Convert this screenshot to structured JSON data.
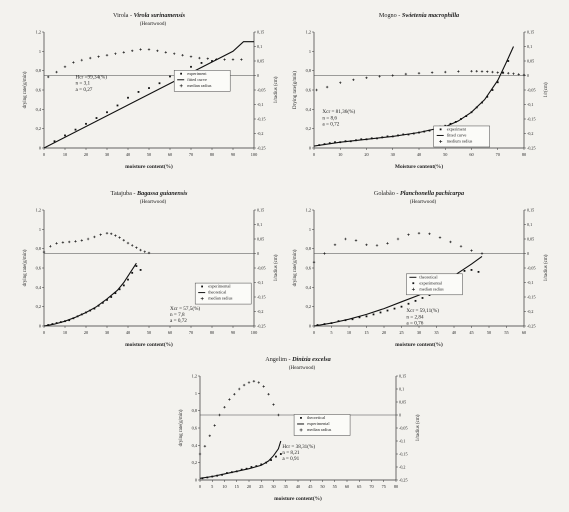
{
  "chart_data": [
    {
      "type": "line",
      "title_prefix": "Virola - ",
      "title_species": "Virola surinamensis",
      "subtitle": "(Heartwood)",
      "xlabel": "moisture content(%)",
      "ylabel": "drying rate(g/min)",
      "y2label": "1/radius (cm)",
      "xlim": [
        0,
        100
      ],
      "ylim": [
        0,
        1.2
      ],
      "y2lim": [
        -0.25,
        0.15
      ],
      "xticks": [
        "0",
        "10",
        "20",
        "30",
        "40",
        "50",
        "60",
        "70",
        "80",
        "90",
        "100"
      ],
      "yticks": [
        "0",
        "0,2",
        "0,4",
        "0,6",
        "0,8",
        "1",
        "1,2"
      ],
      "y2ticks": [
        "-0,25",
        "-0,2",
        "-0,15",
        "-0,1",
        "-0,05",
        "0",
        "0,05",
        "0,1",
        "0,15"
      ],
      "params": [
        "Hcr =99,34(%)",
        "n = 3,1",
        "a = 0,27"
      ],
      "params_pos": [
        15,
        40
      ],
      "legend": {
        "items": [
          "experiment",
          "fitted curve",
          "median radius"
        ],
        "pos": [
          62,
          33
        ]
      },
      "series": [
        {
          "name": "fitted curve",
          "kind": "line",
          "x": [
            0,
            90,
            95,
            100
          ],
          "y": [
            0,
            1.0,
            1.1,
            1.1
          ]
        },
        {
          "name": "experiment",
          "kind": "dots",
          "x": [
            5,
            10,
            15,
            20,
            25,
            30,
            35,
            40,
            45,
            50,
            55,
            60,
            65,
            70,
            75,
            80
          ],
          "y": [
            0.07,
            0.13,
            0.19,
            0.25,
            0.31,
            0.37,
            0.44,
            0.52,
            0.58,
            0.62,
            0.67,
            0.74,
            0.79,
            0.84,
            0.88,
            0.9
          ]
        },
        {
          "name": "median radius",
          "kind": "cross",
          "axis": "y2",
          "x": [
            2,
            6,
            10,
            14,
            18,
            22,
            26,
            30,
            34,
            38,
            42,
            46,
            50,
            54,
            58,
            62,
            66,
            70,
            74,
            78,
            82,
            86,
            90,
            94
          ],
          "y": [
            -0.005,
            0.012,
            0.03,
            0.045,
            0.053,
            0.06,
            0.065,
            0.07,
            0.075,
            0.08,
            0.085,
            0.09,
            0.09,
            0.085,
            0.08,
            0.075,
            0.07,
            0.065,
            0.06,
            0.058,
            0.056,
            0.055,
            0.055,
            0.055
          ]
        }
      ]
    },
    {
      "type": "line",
      "title_prefix": "Mogno - ",
      "title_species": "Swietenia macrophilla",
      "subtitle": "",
      "xlabel": "Moisture content(%)",
      "ylabel": "Drying rate(g/min)",
      "y2label": "1/r(cm)",
      "xlim": [
        0,
        80
      ],
      "ylim": [
        0,
        1.2
      ],
      "y2lim": [
        -0.25,
        0.15
      ],
      "xticks": [
        "0",
        "10",
        "20",
        "30",
        "40",
        "50",
        "60",
        "70",
        "80"
      ],
      "yticks": [
        "0",
        "0,2",
        "0,4",
        "0,6",
        "0,8",
        "1",
        "1,2"
      ],
      "y2ticks": [
        "-0,25",
        "-0,2",
        "-0,15",
        "-0,1",
        "-0,05",
        "0",
        "0,05",
        "0,1",
        "0,15"
      ],
      "params": [
        "Xcr = 81,36(%)",
        "n = 8,6",
        "a = 0,72"
      ],
      "params_pos": [
        4,
        70
      ],
      "legend": {
        "items": [
          "experiment",
          "fitted curve",
          "medium radius"
        ],
        "pos": [
          57,
          81
        ]
      },
      "series": [
        {
          "name": "fitted curve",
          "kind": "line",
          "x": [
            0,
            10,
            20,
            30,
            40,
            50,
            55,
            60,
            65,
            70,
            73,
            76
          ],
          "y": [
            0.02,
            0.06,
            0.09,
            0.12,
            0.16,
            0.22,
            0.28,
            0.37,
            0.5,
            0.7,
            0.87,
            1.05
          ]
        },
        {
          "name": "experiment",
          "kind": "dots",
          "x": [
            2,
            4,
            6,
            8,
            10,
            12,
            14,
            16,
            18,
            20,
            22,
            24,
            26,
            28,
            30,
            32,
            34,
            36,
            38,
            40,
            42,
            44,
            46,
            48,
            50,
            52,
            54,
            56,
            58,
            60,
            62,
            64,
            66,
            68,
            70,
            72,
            74
          ],
          "y": [
            0.03,
            0.04,
            0.05,
            0.06,
            0.06,
            0.07,
            0.07,
            0.08,
            0.09,
            0.09,
            0.1,
            0.1,
            0.11,
            0.12,
            0.12,
            0.13,
            0.14,
            0.14,
            0.15,
            0.16,
            0.17,
            0.18,
            0.2,
            0.22,
            0.23,
            0.25,
            0.27,
            0.3,
            0.33,
            0.37,
            0.42,
            0.47,
            0.53,
            0.6,
            0.68,
            0.78,
            0.9
          ]
        },
        {
          "name": "medium radius",
          "kind": "cross",
          "axis": "y2",
          "x": [
            1,
            5,
            10,
            15,
            20,
            25,
            30,
            35,
            40,
            45,
            50,
            55,
            60,
            62,
            64,
            66,
            68,
            70,
            72,
            74,
            76,
            78,
            80
          ],
          "y": [
            -0.05,
            -0.04,
            -0.025,
            -0.015,
            -0.008,
            -0.003,
            0.0,
            0.005,
            0.008,
            0.01,
            0.012,
            0.014,
            0.015,
            0.015,
            0.014,
            0.013,
            0.012,
            0.01,
            0.009,
            0.008,
            0.006,
            0.004,
            0.002
          ]
        }
      ]
    },
    {
      "type": "line",
      "title_prefix": "Tatajuba - ",
      "title_species": "Bagassa guianensis",
      "subtitle": "(Heartwood)",
      "xlabel": "moisture content(%)",
      "ylabel": "drying rate(g/min)",
      "y2label": "1/radius (cm)",
      "xlim": [
        0,
        100
      ],
      "ylim": [
        0,
        1.2
      ],
      "y2lim": [
        -0.25,
        0.15
      ],
      "xticks": [
        "0",
        "10",
        "20",
        "30",
        "40",
        "50",
        "60",
        "70",
        "80",
        "90",
        "100"
      ],
      "yticks": [
        "0",
        "0,2",
        "0,4",
        "0,6",
        "0,8",
        "1",
        "1,2"
      ],
      "y2ticks": [
        "-0,25",
        "-0,2",
        "-0,15",
        "-0,1",
        "-0,05",
        "0",
        "0,05",
        "0,1",
        "0,15"
      ],
      "params": [
        "Xcr = 57,5(%)",
        "n = 7,8",
        "a = 0,72"
      ],
      "params_pos": [
        60,
        86
      ],
      "legend": {
        "items": [
          "experimental",
          "theoretical",
          "median radius"
        ],
        "pos": [
          72,
          63
        ]
      },
      "series": [
        {
          "name": "theoretical",
          "kind": "line",
          "x": [
            0,
            5,
            10,
            15,
            20,
            25,
            30,
            35,
            38,
            41,
            44
          ],
          "y": [
            0.0,
            0.02,
            0.05,
            0.09,
            0.14,
            0.2,
            0.28,
            0.37,
            0.45,
            0.55,
            0.65
          ]
        },
        {
          "name": "experimental",
          "kind": "dots",
          "x": [
            2,
            4,
            6,
            8,
            10,
            12,
            14,
            16,
            18,
            20,
            22,
            24,
            26,
            28,
            30,
            32,
            34,
            36,
            38,
            40,
            42,
            44,
            46
          ],
          "y": [
            0.01,
            0.02,
            0.03,
            0.04,
            0.05,
            0.06,
            0.08,
            0.1,
            0.12,
            0.14,
            0.16,
            0.18,
            0.21,
            0.24,
            0.27,
            0.3,
            0.34,
            0.38,
            0.42,
            0.48,
            0.55,
            0.62,
            0.58
          ]
        },
        {
          "name": "median radius",
          "kind": "cross",
          "axis": "y2",
          "x": [
            0,
            3,
            6,
            9,
            12,
            15,
            18,
            21,
            24,
            27,
            30,
            32,
            34,
            36,
            38,
            40,
            42,
            44,
            46,
            48,
            50
          ],
          "y": [
            0.005,
            0.025,
            0.035,
            0.038,
            0.04,
            0.042,
            0.045,
            0.05,
            0.057,
            0.065,
            0.07,
            0.068,
            0.062,
            0.055,
            0.046,
            0.036,
            0.028,
            0.02,
            0.012,
            0.006,
            0.002
          ]
        }
      ]
    },
    {
      "type": "line",
      "title_prefix": "Golabão - ",
      "title_species": "Planchonella pachicarpa",
      "subtitle": "(Heartwood)",
      "xlabel": "moisture content(%)",
      "ylabel": "drying rate(g/min)",
      "y2label": "1/radius (cm)",
      "xlim": [
        0,
        60
      ],
      "ylim": [
        0,
        1.2
      ],
      "y2lim": [
        -0.25,
        0.15
      ],
      "xticks": [
        "0",
        "5",
        "10",
        "15",
        "20",
        "25",
        "30",
        "35",
        "40",
        "45",
        "50",
        "55",
        "60"
      ],
      "yticks": [
        "0",
        "0,2",
        "0,4",
        "0,6",
        "0,8",
        "1",
        "1,2"
      ],
      "y2ticks": [
        "-0,25",
        "-0,2",
        "-0,15",
        "-0,1",
        "-0,05",
        "0",
        "0,05",
        "0,1",
        "0,15"
      ],
      "params": [
        "Xcr = 59,11(%)",
        "n = 2,84",
        "a = 0,76"
      ],
      "params_pos": [
        44,
        88
      ],
      "legend": {
        "items": [
          "theoretical",
          "experimental",
          "median radius"
        ],
        "pos": [
          44,
          55
        ]
      },
      "series": [
        {
          "name": "theoretical",
          "kind": "line",
          "x": [
            0,
            5,
            10,
            15,
            20,
            25,
            30,
            35,
            40,
            45,
            48
          ],
          "y": [
            0.0,
            0.03,
            0.07,
            0.12,
            0.18,
            0.25,
            0.32,
            0.41,
            0.52,
            0.64,
            0.72
          ]
        },
        {
          "name": "experimental",
          "kind": "dots",
          "x": [
            1,
            3,
            5,
            7,
            9,
            11,
            13,
            15,
            17,
            19,
            21,
            23,
            25,
            27,
            29,
            31,
            33,
            35,
            37,
            39,
            41,
            43,
            45,
            47
          ],
          "y": [
            0.01,
            0.02,
            0.03,
            0.05,
            0.06,
            0.07,
            0.09,
            0.1,
            0.12,
            0.14,
            0.16,
            0.18,
            0.2,
            0.23,
            0.26,
            0.29,
            0.32,
            0.36,
            0.41,
            0.46,
            0.52,
            0.57,
            0.58,
            0.56
          ]
        },
        {
          "name": "median radius",
          "kind": "cross",
          "axis": "y2",
          "x": [
            0,
            3,
            6,
            9,
            12,
            15,
            18,
            21,
            24,
            27,
            30,
            33,
            36,
            39,
            42,
            45,
            48
          ],
          "y": [
            -0.03,
            0.0,
            0.03,
            0.05,
            0.045,
            0.03,
            0.028,
            0.035,
            0.05,
            0.065,
            0.07,
            0.068,
            0.055,
            0.04,
            0.025,
            0.01,
            0.0
          ]
        }
      ]
    },
    {
      "type": "line",
      "title_prefix": "Angelim - ",
      "title_species": "Dinizia excelsa",
      "subtitle": "(Heartwood)",
      "xlabel": "moisture content(%)",
      "ylabel": "drying rate(g/min)",
      "y2label": "1/radius (cm)",
      "xlim": [
        0,
        80
      ],
      "ylim": [
        0,
        1.2
      ],
      "y2lim": [
        -0.25,
        0.15
      ],
      "xticks": [
        "0",
        "5",
        "10",
        "15",
        "20",
        "25",
        "30",
        "35",
        "40",
        "45",
        "50",
        "55",
        "60",
        "65",
        "70",
        "75",
        "80"
      ],
      "yticks": [
        "0",
        "0,2",
        "0,4",
        "0,6",
        "0,8",
        "1",
        "1,2"
      ],
      "y2ticks": [
        "-0,25",
        "-0,2",
        "-0,15",
        "-0,1",
        "-0,05",
        "0",
        "0,05",
        "0,1",
        "0,15"
      ],
      "params": [
        "Hcr = 38,31(%)",
        "n = 8,21",
        "a = 0,91"
      ],
      "params_pos": [
        42,
        69
      ],
      "legend": {
        "items": [
          "theoretical",
          "experimental",
          "median radius"
        ],
        "pos": [
          48,
          37
        ]
      },
      "series": [
        {
          "name": "experimental",
          "kind": "line",
          "x": [
            0,
            5,
            10,
            15,
            20,
            25,
            28,
            30,
            32,
            33
          ],
          "y": [
            0.02,
            0.04,
            0.07,
            0.1,
            0.13,
            0.17,
            0.22,
            0.28,
            0.36,
            0.45
          ]
        },
        {
          "name": "theoretical",
          "kind": "dots",
          "x": [
            1,
            3,
            5,
            7,
            9,
            11,
            13,
            15,
            17,
            19,
            21,
            23,
            25,
            27,
            29,
            31,
            33
          ],
          "y": [
            0.02,
            0.03,
            0.04,
            0.05,
            0.06,
            0.08,
            0.09,
            0.1,
            0.12,
            0.13,
            0.15,
            0.16,
            0.18,
            0.2,
            0.23,
            0.27,
            0.3
          ]
        },
        {
          "name": "median radius",
          "kind": "cross",
          "axis": "y2",
          "x": [
            0,
            2,
            4,
            6,
            8,
            10,
            12,
            14,
            16,
            18,
            20,
            22,
            24,
            26,
            28,
            30,
            32
          ],
          "y": [
            -0.15,
            -0.12,
            -0.08,
            -0.04,
            0.0,
            0.03,
            0.06,
            0.08,
            0.1,
            0.115,
            0.125,
            0.13,
            0.125,
            0.11,
            0.08,
            0.04,
            0.0
          ]
        }
      ]
    }
  ]
}
